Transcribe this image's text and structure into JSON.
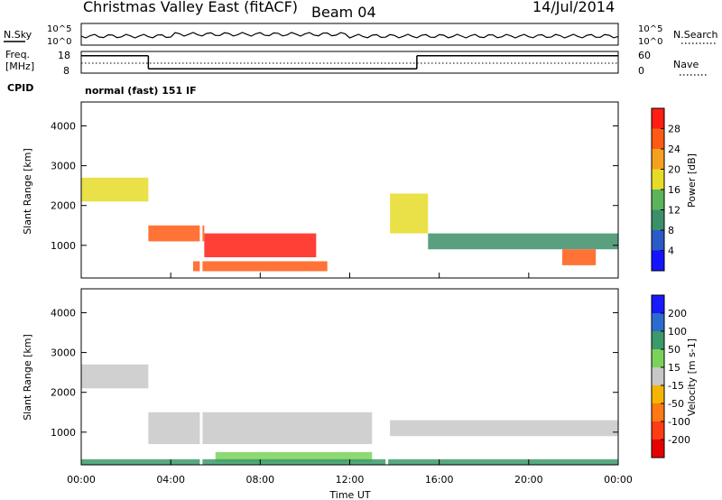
{
  "header": {
    "title": "Christmas Valley East (fitACF)",
    "beam": "Beam 04",
    "date": "14/Jul/2014"
  },
  "chart_data": [
    {
      "type": "line",
      "panel": "noise",
      "left_label": "N.Sky",
      "right_label": "N.Search",
      "left_ticks": [
        "10^5",
        "10^0"
      ],
      "right_ticks": [
        "10^5",
        "10^0"
      ]
    },
    {
      "type": "line",
      "panel": "frequency",
      "left_label_lines": [
        "Freq.",
        "[MHz]"
      ],
      "right_label": "Nave",
      "left_ticks": [
        "18",
        "8"
      ],
      "right_ticks": [
        "60",
        "0"
      ],
      "freq_steps": [
        {
          "t0": 0,
          "t1": 3,
          "mhz": 16
        },
        {
          "t0": 3,
          "t1": 13.7,
          "mhz": 10
        },
        {
          "t0": 13.7,
          "t1": 15,
          "mhz": 10
        },
        {
          "t0": 15,
          "t1": 24,
          "mhz": 16
        }
      ]
    },
    {
      "type": "text",
      "panel": "cpid",
      "label": "CPID",
      "value": "normal (fast) 151 IF"
    },
    {
      "type": "heatmap",
      "panel": "power",
      "ylabel": "Slant Range [km]",
      "y_ticks": [
        "1000",
        "2000",
        "3000",
        "4000"
      ],
      "ylim": [
        180,
        4600
      ],
      "colorbar_label": "Power [dB]",
      "colorbar_ticks": [
        "4",
        "8",
        "12",
        "16",
        "20",
        "24",
        "28"
      ],
      "colorbar_colors": [
        "#1414ff",
        "#2a5ac8",
        "#3d8f6a",
        "#5ab45a",
        "#e6dc28",
        "#f5a01e",
        "#ff5a14",
        "#ff1e14"
      ],
      "bands": [
        {
          "t0": 0,
          "t1": 3,
          "r0": 2100,
          "r1": 2700,
          "level": 0.6
        },
        {
          "t0": 3,
          "t1": 5.5,
          "r0": 1100,
          "r1": 1500,
          "level": 0.8
        },
        {
          "t0": 5.5,
          "t1": 10.5,
          "r0": 700,
          "r1": 1300,
          "level": 0.95
        },
        {
          "t0": 5,
          "t1": 11,
          "r0": 350,
          "r1": 600,
          "level": 0.9
        },
        {
          "t0": 13.8,
          "t1": 15.5,
          "r0": 1300,
          "r1": 2300,
          "level": 0.5
        },
        {
          "t0": 15.5,
          "t1": 24,
          "r0": 900,
          "r1": 1300,
          "level": 0.35
        },
        {
          "t0": 21.5,
          "t1": 23,
          "r0": 500,
          "r1": 900,
          "level": 0.85
        }
      ]
    },
    {
      "type": "heatmap",
      "panel": "velocity",
      "ylabel": "Slant Range [km]",
      "y_ticks": [
        "1000",
        "2000",
        "3000",
        "4000"
      ],
      "ylim": [
        180,
        4600
      ],
      "colorbar_label": "Velocity [m s-1]",
      "colorbar_ticks": [
        "200",
        "100",
        "50",
        "15",
        "-15",
        "-50",
        "-100",
        "-200"
      ],
      "colorbar_colors": [
        "#1a1aff",
        "#2e6bd0",
        "#3b9a6b",
        "#7ad25a",
        "#c8c8c8",
        "#f5b400",
        "#ff7814",
        "#ff3c14",
        "#e60000"
      ],
      "bands": [
        {
          "t0": 0,
          "t1": 3,
          "r0": 2100,
          "r1": 2700,
          "level": 0.5
        },
        {
          "t0": 3,
          "t1": 13,
          "r0": 700,
          "r1": 1500,
          "level": 0.5
        },
        {
          "t0": 6,
          "t1": 13,
          "r0": 250,
          "r1": 500,
          "level": 0.35
        },
        {
          "t0": 13.8,
          "t1": 24,
          "r0": 900,
          "r1": 1300,
          "level": 0.5
        },
        {
          "t0": 0,
          "t1": 24,
          "r0": 190,
          "r1": 320,
          "level": 0.3
        }
      ]
    }
  ],
  "x_axis": {
    "label": "Time UT",
    "ticks": [
      "00:00",
      "04:00",
      "08:00",
      "12:00",
      "16:00",
      "20:00",
      "00:00"
    ],
    "range_hours": [
      0,
      24
    ]
  }
}
